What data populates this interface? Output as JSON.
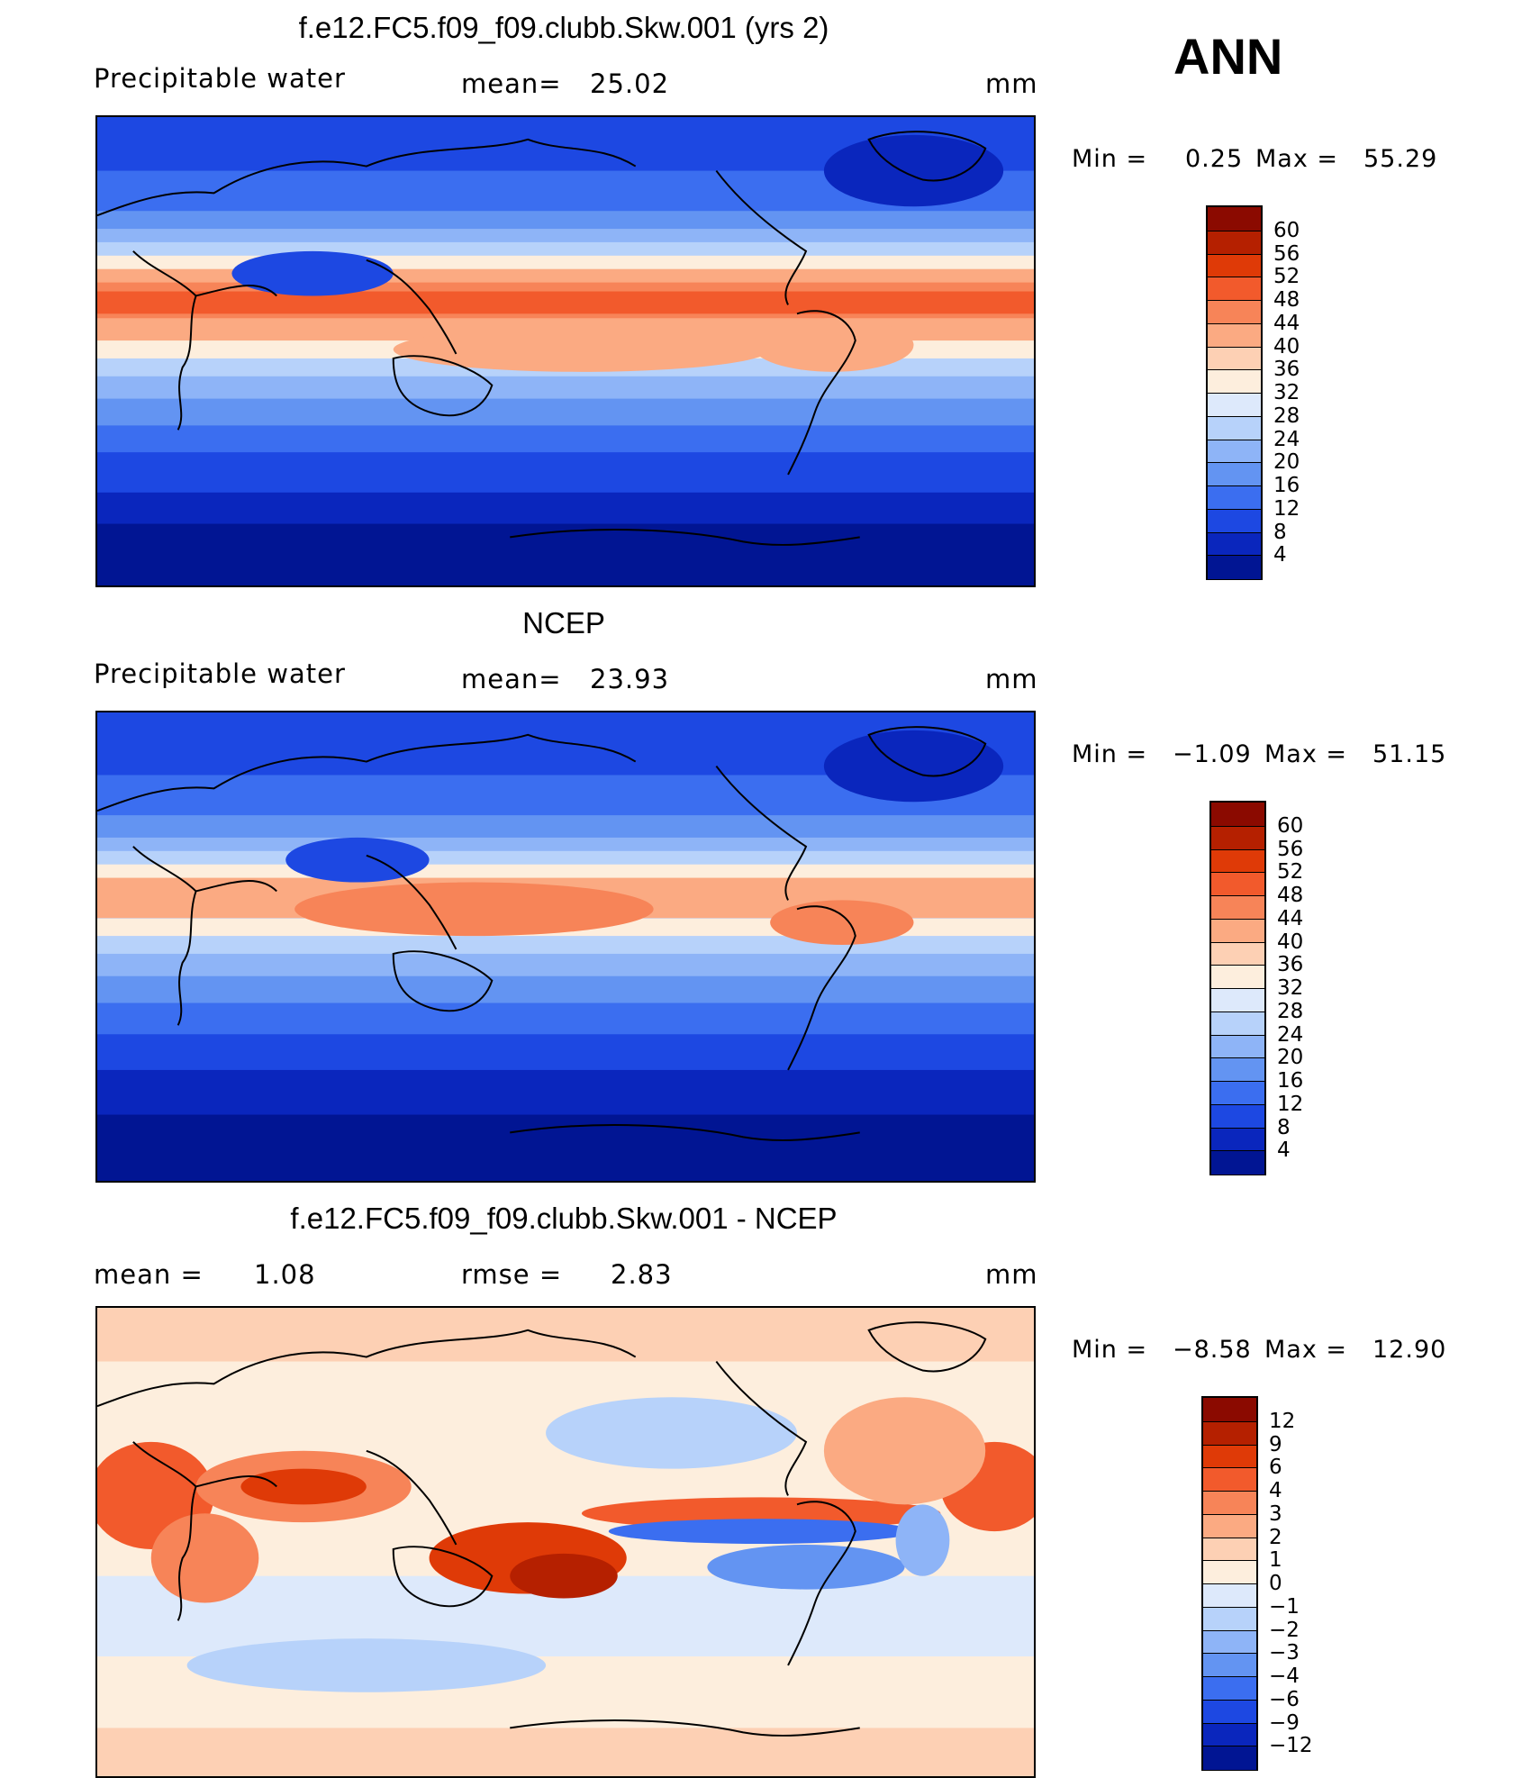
{
  "season": "ANN",
  "panels": [
    {
      "title": "f.e12.FC5.f09_f09.clubb.Skw.001 (yrs 2)",
      "variable": "Precipitable water",
      "stat1_label": "mean=",
      "stat1_value": "25.02",
      "stat2_label": "",
      "stat2_value": "",
      "units": "mm",
      "min_label": "Min =",
      "min_value": "0.25",
      "max_label": "Max =",
      "max_value": "55.29",
      "colorbar_labels": [
        "60",
        "56",
        "52",
        "48",
        "44",
        "40",
        "36",
        "32",
        "28",
        "24",
        "20",
        "16",
        "12",
        "8",
        "4"
      ]
    },
    {
      "title": "NCEP",
      "variable": "Precipitable water",
      "stat1_label": "mean=",
      "stat1_value": "23.93",
      "stat2_label": "",
      "stat2_value": "",
      "units": "mm",
      "min_label": "Min =",
      "min_value": "−1.09",
      "max_label": "Max =",
      "max_value": "51.15",
      "colorbar_labels": [
        "60",
        "56",
        "52",
        "48",
        "44",
        "40",
        "36",
        "32",
        "28",
        "24",
        "20",
        "16",
        "12",
        "8",
        "4"
      ]
    },
    {
      "title": "f.e12.FC5.f09_f09.clubb.Skw.001 - NCEP",
      "variable": "",
      "stat1_label": "mean =",
      "stat1_value": "1.08",
      "stat2_label": "rmse =",
      "stat2_value": "2.83",
      "units": "mm",
      "min_label": "Min =",
      "min_value": "−8.58",
      "max_label": "Max =",
      "max_value": "12.90",
      "colorbar_labels": [
        "12",
        "9",
        "6",
        "4",
        "3",
        "2",
        "1",
        "0",
        "−1",
        "−2",
        "−3",
        "−4",
        "−6",
        "−9",
        "−12"
      ]
    }
  ],
  "colors": {
    "abs_scale": [
      "#8b0a00",
      "#b52000",
      "#df3a07",
      "#f25a2c",
      "#f78458",
      "#fbaa82",
      "#fdd0b4",
      "#fdeedd",
      "#dde9fb",
      "#b7d2fa",
      "#8eb4f7",
      "#6394f2",
      "#3b6ef0",
      "#1d48e2",
      "#0a26bd",
      "#011593"
    ],
    "diff_scale": [
      "#8b0a00",
      "#b52000",
      "#df3a07",
      "#f25a2c",
      "#f78458",
      "#fbaa82",
      "#fdd0b4",
      "#fdeedd",
      "#dde9fb",
      "#b7d2fa",
      "#8eb4f7",
      "#6394f2",
      "#3b6ef0",
      "#1d48e2",
      "#0a26bd",
      "#011593"
    ]
  }
}
